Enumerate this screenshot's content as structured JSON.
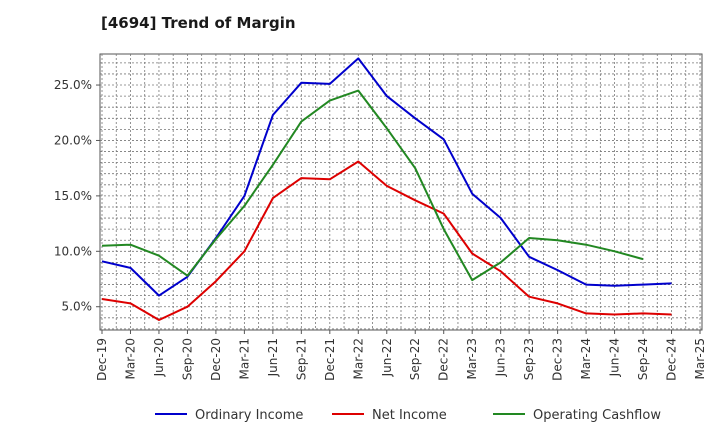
{
  "chart_data": {
    "type": "line",
    "title": "[4694]  Trend of Margin",
    "xlabel": "",
    "ylabel": "",
    "categories": [
      "Dec-19",
      "Mar-20",
      "Jun-20",
      "Sep-20",
      "Dec-20",
      "Mar-21",
      "Jun-21",
      "Sep-21",
      "Dec-21",
      "Mar-22",
      "Jun-22",
      "Sep-22",
      "Dec-22",
      "Mar-23",
      "Jun-23",
      "Sep-23",
      "Dec-23",
      "Mar-24",
      "Jun-24",
      "Sep-24",
      "Dec-24",
      "Mar-25"
    ],
    "yticks": [
      "5.0%",
      "10.0%",
      "15.0%",
      "20.0%",
      "25.0%"
    ],
    "ytick_values": [
      5,
      10,
      15,
      20,
      25
    ],
    "ylim": [
      2.9,
      27.8
    ],
    "grid": true,
    "legend_position": "bottom",
    "series": [
      {
        "name": "Ordinary Income",
        "color": "#0000cc",
        "values": [
          9.1,
          8.5,
          6.0,
          7.7,
          11.2,
          15.0,
          22.3,
          25.2,
          25.1,
          27.4,
          24.0,
          22.0,
          20.1,
          15.2,
          13.0,
          9.5,
          8.3,
          7.0,
          6.9,
          7.0,
          7.1,
          null
        ]
      },
      {
        "name": "Net Income",
        "color": "#dd0000",
        "values": [
          5.7,
          5.3,
          3.8,
          5.0,
          7.3,
          10.0,
          14.8,
          16.6,
          16.5,
          18.1,
          15.9,
          14.6,
          13.4,
          9.8,
          8.2,
          5.9,
          5.3,
          4.4,
          4.3,
          4.4,
          4.3,
          null
        ]
      },
      {
        "name": "Operating Cashflow",
        "color": "#228822",
        "values": [
          10.5,
          10.6,
          9.6,
          7.8,
          11.1,
          14.1,
          17.8,
          21.7,
          23.6,
          24.5,
          21.1,
          17.5,
          12.0,
          7.4,
          9.0,
          11.2,
          11.0,
          10.6,
          10.0,
          9.3,
          null,
          null
        ]
      }
    ]
  }
}
